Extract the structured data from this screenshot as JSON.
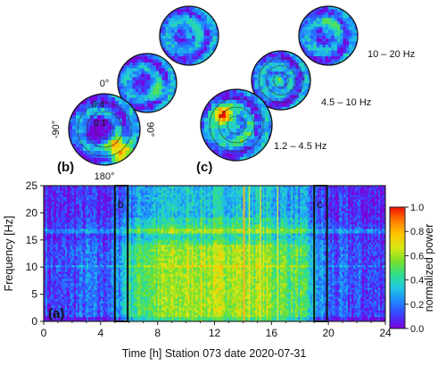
{
  "chart_data": [
    {
      "type": "heatmap",
      "panel_label": "(a)",
      "xlabel": "Time [h] Station 073 date 2020-07-31",
      "ylabel": "Frequency [Hz]",
      "xlim": [
        0,
        24
      ],
      "ylim": [
        0,
        25
      ],
      "xticks": [
        "0",
        "4",
        "8",
        "12",
        "16",
        "20",
        "24"
      ],
      "yticks": [
        "0",
        "5",
        "10",
        "15",
        "20",
        "25"
      ],
      "colorbar": {
        "label": "normalized power",
        "range": [
          0.0,
          1.0
        ],
        "ticks": [
          "0.0",
          "0.2",
          "0.4",
          "0.6",
          "0.8",
          "1.0"
        ],
        "colors": [
          "#7a00d8",
          "#3d3dff",
          "#1e88ff",
          "#20c8e0",
          "#2de08c",
          "#7be028",
          "#d8e814",
          "#ffc400",
          "#ff7a00",
          "#f01000"
        ]
      },
      "windows": [
        {
          "label": "b",
          "start_h": 5.0,
          "end_h": 5.9
        },
        {
          "label": "c",
          "start_h": 19.0,
          "end_h": 19.9
        }
      ],
      "spectrogram_profile": {
        "hours": [
          0,
          1,
          2,
          3,
          4,
          5,
          6,
          7,
          8,
          9,
          10,
          11,
          12,
          13,
          14,
          15,
          16,
          17,
          18,
          19,
          20,
          21,
          22,
          23,
          24
        ],
        "level": [
          0.12,
          0.1,
          0.13,
          0.18,
          0.14,
          0.2,
          0.42,
          0.5,
          0.55,
          0.58,
          0.6,
          0.62,
          0.6,
          0.63,
          0.62,
          0.6,
          0.57,
          0.52,
          0.48,
          0.3,
          0.16,
          0.14,
          0.13,
          0.12,
          0.12
        ]
      },
      "bright_lines_h": [
        14.0,
        14.4,
        15.2,
        16.4
      ]
    },
    {
      "type": "polar-maps",
      "panel_label": "(b)",
      "angle_labels": {
        "top": "0°",
        "left": "-90°",
        "right": "90°",
        "bottom": "180°"
      },
      "radius_labels": [
        "0.4",
        "0.1"
      ],
      "peak_power": [
        0.85,
        0.45,
        0.35
      ]
    },
    {
      "type": "polar-maps",
      "panel_label": "(c)",
      "bands": [
        "10 – 20 Hz",
        "4.5 – 10 Hz",
        "1.2 – 4.5 Hz"
      ],
      "peak_power": [
        0.45,
        0.55,
        0.95
      ]
    }
  ]
}
